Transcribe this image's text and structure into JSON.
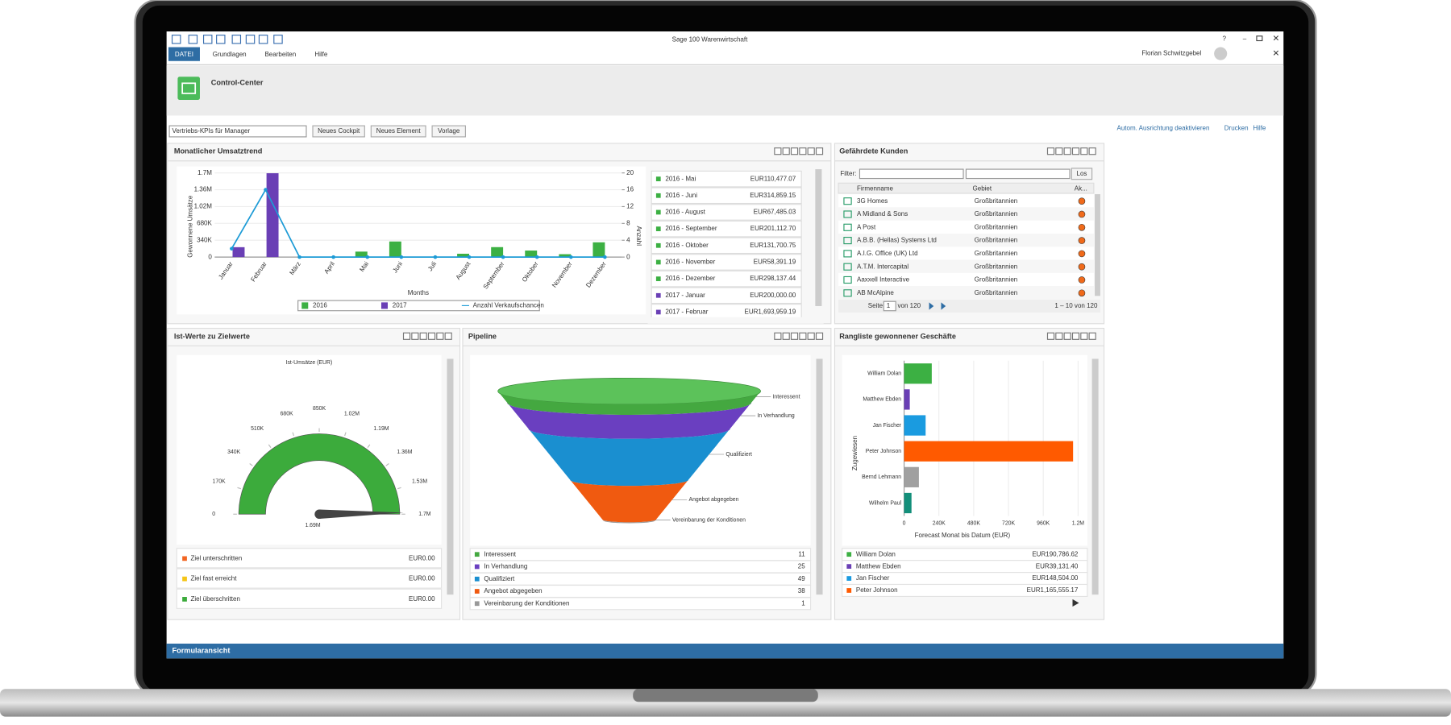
{
  "window": {
    "title": "Sage 100 Warenwirtschaft",
    "help": "?",
    "user": "Florian Schwitzgebel"
  },
  "menu": {
    "items": [
      "DATEI",
      "Grundlagen",
      "Bearbeiten",
      "Hilfe"
    ]
  },
  "header": {
    "title": "Control-Center"
  },
  "toolbar": {
    "cockpit": "Vertriebs-KPIs für Manager",
    "buttons": [
      "Neues Cockpit",
      "Neues Element",
      "Vorlage"
    ],
    "links": [
      "Autom. Ausrichtung deaktivieren",
      "Drucken",
      "Hilfe"
    ]
  },
  "umsatztrend": {
    "title": "Monatlicher Umsatztrend",
    "chart_data": {
      "type": "bar",
      "categories": [
        "Januar",
        "Februar",
        "März",
        "April",
        "Mai",
        "Juni",
        "Juli",
        "August",
        "September",
        "Oktober",
        "November",
        "Dezember"
      ],
      "series": [
        {
          "name": "2016",
          "color": "#3cb043",
          "values": [
            null,
            null,
            null,
            null,
            110477.07,
            314859.15,
            null,
            67485.03,
            201112.7,
            131700.75,
            58391.19,
            298137.44
          ]
        },
        {
          "name": "2017",
          "color": "#6a3fb5",
          "values": [
            200000,
            1693959.19,
            null,
            null,
            null,
            null,
            null,
            null,
            null,
            null,
            null,
            null
          ]
        },
        {
          "name": "Anzahl Verkaufschancen",
          "type": "line",
          "axis": "y2",
          "color": "#1d9bd6",
          "values": [
            2,
            16,
            0,
            0,
            0,
            0,
            0,
            0,
            0,
            0,
            0,
            0
          ]
        }
      ],
      "ylim": [
        0,
        1700000
      ],
      "yticks": [
        0,
        {
          "value": 340000,
          "label": "340K"
        },
        {
          "value": 680000,
          "label": "680K"
        },
        {
          "value": 1020000,
          "label": "1.02M"
        },
        {
          "value": 1360000,
          "label": "1.36M"
        },
        {
          "value": 1700000,
          "label": "1.7M"
        }
      ],
      "y2lim": [
        0,
        20
      ],
      "y2ticks": [
        0,
        4,
        8,
        12,
        16,
        20
      ],
      "y_label": "Gewonnene Umsätze",
      "y2_label": "Anzahl",
      "x_label": "Months",
      "grid": true
    },
    "list": [
      [
        "2016 - Mai",
        "EUR110,477.07"
      ],
      [
        "2016 - Juni",
        "EUR314,859.15"
      ],
      [
        "2016 - August",
        "EUR67,485.03"
      ],
      [
        "2016 - September",
        "EUR201,112.70"
      ],
      [
        "2016 - Oktober",
        "EUR131,700.75"
      ],
      [
        "2016 - November",
        "EUR58,391.19"
      ],
      [
        "2016 - Dezember",
        "EUR298,137.44"
      ],
      [
        "2017 - Januar",
        "EUR200,000.00"
      ],
      [
        "2017 - Februar",
        "EUR1,693,959.19"
      ]
    ]
  },
  "kunden": {
    "title": "Gefährdete Kunden",
    "filter_label": "Filter:",
    "button": "Los",
    "columns": [
      "Firmenname",
      "Gebiet",
      "Ak..."
    ],
    "rows": [
      [
        "3G Homes",
        "Großbritannien"
      ],
      [
        "A Midland & Sons",
        "Großbritannien"
      ],
      [
        "A Post",
        "Großbritannien"
      ],
      [
        "A.B.B. (Hellas) Systems Ltd",
        "Großbritannien"
      ],
      [
        "A.I.G. Office (UK) Ltd",
        "Großbritannien"
      ],
      [
        "A.T.M. Intercapital",
        "Großbritannien"
      ],
      [
        "Aaxxell Interactive",
        "Großbritannien"
      ],
      [
        "AB McAlpine",
        "Großbritannien"
      ]
    ],
    "pager": {
      "page_label": "Seite",
      "page": "1",
      "of": "von 120",
      "range": "1 – 10 von 120"
    }
  },
  "zielwerte": {
    "title": "Ist-Werte zu Zielwerte",
    "chart_data": {
      "type": "gauge",
      "title": "Ist-Umsätze (EUR)",
      "value": 1690000,
      "value_label": "1.69M",
      "color": "#3cab3c",
      "ylim": [
        0,
        1700000
      ],
      "yticks": [
        0,
        {
          "value": 170000,
          "label": "170K"
        },
        {
          "value": 340000,
          "label": "340K"
        },
        {
          "value": 510000,
          "label": "510K"
        },
        {
          "value": 680000,
          "label": "680K"
        },
        {
          "value": 850000,
          "label": "850K"
        },
        {
          "value": 1020000,
          "label": "1.02M"
        },
        {
          "value": 1190000,
          "label": "1.19M"
        },
        {
          "value": 1360000,
          "label": "1.36M"
        },
        {
          "value": 1530000,
          "label": "1.53M"
        },
        {
          "value": 1700000,
          "label": "1.7M"
        }
      ]
    },
    "legend": [
      [
        "Ziel unterschritten",
        "EUR0.00"
      ],
      [
        "Ziel fast erreicht",
        "EUR0.00"
      ],
      [
        "Ziel überschritten",
        "EUR0.00"
      ]
    ]
  },
  "pipeline": {
    "title": "Pipeline",
    "chart_data": {
      "type": "funnel",
      "categories": [
        "Interessent",
        "In Verhandlung",
        "Qualifiziert",
        "Angebot abgegeben",
        "Vereinbarung der Konditionen"
      ],
      "values": [
        11,
        25,
        49,
        38,
        1
      ],
      "colors": [
        "#44a840",
        "#6a3fc0",
        "#1a8fd0",
        "#f05a10",
        "#999999"
      ]
    }
  },
  "rangliste": {
    "title": "Rangliste gewonnener Geschäfte",
    "chart_data": {
      "type": "bar",
      "orientation": "horizontal",
      "categories": [
        "William Dolan",
        "Matthew Ebden",
        "Jan Fischer",
        "Peter Johnson",
        "Bernd Lehmann",
        "Wilhelm Paul"
      ],
      "values": [
        190786.62,
        39131.4,
        148504.0,
        1165555.17,
        102000,
        51000
      ],
      "colors": [
        "#3cb043",
        "#6a3fb5",
        "#1a9be0",
        "#ff5a00",
        "#a0a0a0",
        "#138f7a"
      ],
      "xlim": [
        0,
        1200000
      ],
      "xticks": [
        0,
        {
          "value": 240000,
          "label": "240K"
        },
        {
          "value": 480000,
          "label": "480K"
        },
        {
          "value": 720000,
          "label": "720K"
        },
        {
          "value": 960000,
          "label": "960K"
        },
        {
          "value": 1200000,
          "label": "1.2M"
        }
      ],
      "x_label": "Forecast Monat bis Datum (EUR)",
      "y_label": "Zugewiesen"
    },
    "list": [
      [
        "William Dolan",
        "EUR190,786.62"
      ],
      [
        "Matthew Ebden",
        "EUR39,131.40"
      ],
      [
        "Jan Fischer",
        "EUR148,504.00"
      ],
      [
        "Peter Johnson",
        "EUR1,165,555.17"
      ]
    ]
  },
  "footer": {
    "title": "Formularansicht"
  }
}
